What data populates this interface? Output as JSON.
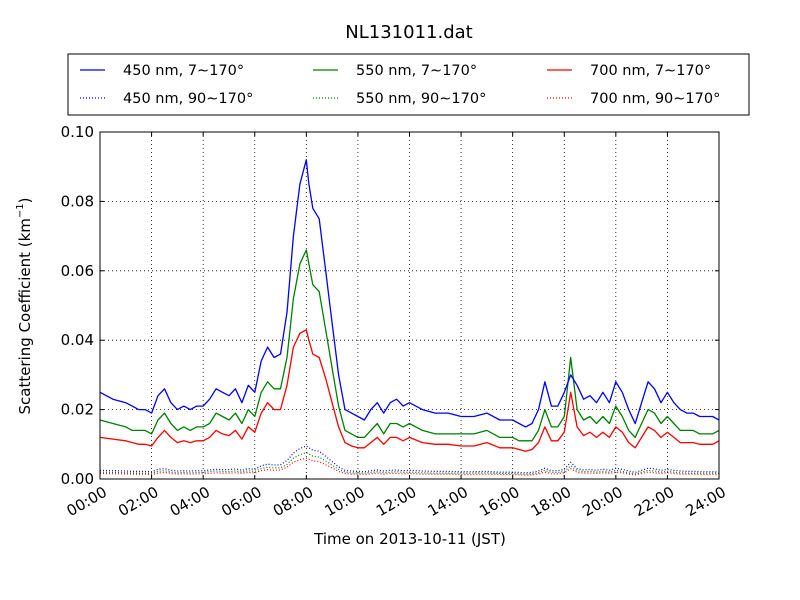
{
  "chart_data": {
    "type": "line",
    "title": "NL131011.dat",
    "xlabel": "Time on 2013-10-11 (JST)",
    "ylabel": "Scattering Coefficient (km",
    "ylabel_exponent": "−1",
    "ylabel_close": ")",
    "x_unit": "hours",
    "xlim": [
      0,
      24
    ],
    "ylim": [
      0,
      0.1
    ],
    "grid": true,
    "legend_position": "top, above plot",
    "x_ticks": [
      {
        "value": 0,
        "label": "00:00"
      },
      {
        "value": 2,
        "label": "02:00"
      },
      {
        "value": 4,
        "label": "04:00"
      },
      {
        "value": 6,
        "label": "06:00"
      },
      {
        "value": 8,
        "label": "08:00"
      },
      {
        "value": 10,
        "label": "10:00"
      },
      {
        "value": 12,
        "label": "12:00"
      },
      {
        "value": 14,
        "label": "14:00"
      },
      {
        "value": 16,
        "label": "16:00"
      },
      {
        "value": 18,
        "label": "18:00"
      },
      {
        "value": 20,
        "label": "20:00"
      },
      {
        "value": 22,
        "label": "22:00"
      },
      {
        "value": 24,
        "label": "24:00"
      }
    ],
    "y_ticks": [
      {
        "value": 0,
        "label": "0.00"
      },
      {
        "value": 0.02,
        "label": "0.02"
      },
      {
        "value": 0.04,
        "label": "0.04"
      },
      {
        "value": 0.06,
        "label": "0.06"
      },
      {
        "value": 0.08,
        "label": "0.08"
      },
      {
        "value": 0.1,
        "label": "0.10"
      }
    ],
    "x": [
      0,
      0.5,
      1,
      1.25,
      1.5,
      1.75,
      2,
      2.25,
      2.5,
      2.75,
      3,
      3.25,
      3.5,
      3.75,
      4,
      4.25,
      4.5,
      4.75,
      5,
      5.25,
      5.5,
      5.75,
      6,
      6.25,
      6.5,
      6.75,
      7,
      7.25,
      7.5,
      7.75,
      8,
      8.1,
      8.25,
      8.5,
      8.75,
      9,
      9.25,
      9.5,
      9.75,
      10,
      10.25,
      10.5,
      10.75,
      11,
      11.25,
      11.5,
      11.75,
      12,
      12.5,
      13,
      13.5,
      14,
      14.5,
      15,
      15.5,
      16,
      16.25,
      16.5,
      16.75,
      17,
      17.25,
      17.5,
      17.75,
      18,
      18.25,
      18.5,
      18.75,
      19,
      19.25,
      19.5,
      19.75,
      20,
      20.25,
      20.5,
      20.75,
      21,
      21.25,
      21.5,
      21.75,
      22,
      22.25,
      22.5,
      22.75,
      23,
      23.25,
      23.5,
      23.75,
      24
    ],
    "series": [
      {
        "name": "450 nm, 7∼170°",
        "color": "#0000ff",
        "style": "solid",
        "values": [
          0.025,
          0.023,
          0.022,
          0.021,
          0.02,
          0.02,
          0.019,
          0.024,
          0.026,
          0.022,
          0.02,
          0.021,
          0.02,
          0.021,
          0.021,
          0.023,
          0.026,
          0.025,
          0.024,
          0.026,
          0.022,
          0.027,
          0.025,
          0.034,
          0.038,
          0.035,
          0.036,
          0.048,
          0.07,
          0.085,
          0.092,
          0.085,
          0.078,
          0.075,
          0.06,
          0.045,
          0.03,
          0.02,
          0.019,
          0.018,
          0.017,
          0.02,
          0.022,
          0.019,
          0.022,
          0.023,
          0.021,
          0.022,
          0.02,
          0.019,
          0.019,
          0.018,
          0.018,
          0.019,
          0.017,
          0.017,
          0.016,
          0.015,
          0.016,
          0.02,
          0.028,
          0.021,
          0.021,
          0.025,
          0.03,
          0.027,
          0.023,
          0.024,
          0.022,
          0.025,
          0.022,
          0.028,
          0.025,
          0.02,
          0.016,
          0.022,
          0.028,
          0.026,
          0.022,
          0.025,
          0.022,
          0.02,
          0.019,
          0.019,
          0.018,
          0.018,
          0.018,
          0.017
        ]
      },
      {
        "name": "450 nm, 90∼170°",
        "color": "#0000ff",
        "style": "dotted",
        "values": [
          0.0025,
          0.0024,
          0.0023,
          0.0022,
          0.0022,
          0.0022,
          0.0021,
          0.0028,
          0.003,
          0.0025,
          0.0023,
          0.0024,
          0.0023,
          0.0024,
          0.0024,
          0.0026,
          0.0028,
          0.0027,
          0.0027,
          0.0029,
          0.0025,
          0.003,
          0.0028,
          0.0038,
          0.0043,
          0.004,
          0.0041,
          0.0053,
          0.0075,
          0.0088,
          0.0095,
          0.009,
          0.0083,
          0.008,
          0.0065,
          0.005,
          0.0035,
          0.0025,
          0.0023,
          0.0022,
          0.0021,
          0.0024,
          0.0026,
          0.0023,
          0.0025,
          0.0026,
          0.0024,
          0.0025,
          0.0023,
          0.0022,
          0.0022,
          0.0021,
          0.0021,
          0.0022,
          0.002,
          0.002,
          0.0019,
          0.0018,
          0.0019,
          0.0023,
          0.0031,
          0.0024,
          0.0024,
          0.0028,
          0.0048,
          0.003,
          0.0026,
          0.0027,
          0.0025,
          0.0028,
          0.0025,
          0.0031,
          0.0028,
          0.0023,
          0.0019,
          0.0025,
          0.0031,
          0.0029,
          0.0025,
          0.0028,
          0.0025,
          0.0023,
          0.0022,
          0.0022,
          0.0021,
          0.0021,
          0.0021,
          0.002
        ]
      },
      {
        "name": "550 nm, 7∼170°",
        "color": "#008000",
        "style": "solid",
        "values": [
          0.017,
          0.016,
          0.015,
          0.014,
          0.014,
          0.014,
          0.013,
          0.017,
          0.019,
          0.016,
          0.014,
          0.015,
          0.014,
          0.015,
          0.015,
          0.016,
          0.019,
          0.018,
          0.017,
          0.019,
          0.016,
          0.02,
          0.018,
          0.025,
          0.028,
          0.026,
          0.026,
          0.035,
          0.052,
          0.062,
          0.066,
          0.062,
          0.056,
          0.054,
          0.043,
          0.032,
          0.021,
          0.014,
          0.013,
          0.012,
          0.012,
          0.014,
          0.016,
          0.013,
          0.016,
          0.016,
          0.015,
          0.016,
          0.014,
          0.013,
          0.013,
          0.013,
          0.013,
          0.014,
          0.012,
          0.012,
          0.011,
          0.011,
          0.011,
          0.014,
          0.02,
          0.015,
          0.015,
          0.018,
          0.035,
          0.02,
          0.017,
          0.018,
          0.016,
          0.018,
          0.016,
          0.021,
          0.018,
          0.014,
          0.012,
          0.016,
          0.02,
          0.019,
          0.016,
          0.018,
          0.016,
          0.014,
          0.014,
          0.014,
          0.013,
          0.013,
          0.013,
          0.014
        ]
      },
      {
        "name": "550 nm, 90∼170°",
        "color": "#008000",
        "style": "dotted",
        "values": [
          0.002,
          0.0019,
          0.0018,
          0.0018,
          0.0017,
          0.0017,
          0.0017,
          0.0022,
          0.0024,
          0.002,
          0.0018,
          0.0019,
          0.0018,
          0.0019,
          0.0019,
          0.0021,
          0.0023,
          0.0022,
          0.0021,
          0.0023,
          0.002,
          0.0024,
          0.0022,
          0.003,
          0.0034,
          0.0032,
          0.0032,
          0.0042,
          0.006,
          0.007,
          0.0076,
          0.0072,
          0.0066,
          0.0063,
          0.0052,
          0.004,
          0.0028,
          0.002,
          0.0018,
          0.0017,
          0.0017,
          0.0019,
          0.0021,
          0.0018,
          0.002,
          0.0021,
          0.0019,
          0.002,
          0.0018,
          0.0017,
          0.0017,
          0.0017,
          0.0017,
          0.0018,
          0.0016,
          0.0016,
          0.0015,
          0.0014,
          0.0015,
          0.0018,
          0.0025,
          0.0019,
          0.0019,
          0.0022,
          0.0038,
          0.0024,
          0.0021,
          0.0022,
          0.002,
          0.0022,
          0.002,
          0.0025,
          0.0022,
          0.0018,
          0.0015,
          0.002,
          0.0025,
          0.0023,
          0.002,
          0.0022,
          0.002,
          0.0018,
          0.0017,
          0.0017,
          0.0017,
          0.0017,
          0.0017,
          0.0016
        ]
      },
      {
        "name": "700 nm, 7∼170°",
        "color": "#ff0000",
        "style": "solid",
        "values": [
          0.012,
          0.0115,
          0.011,
          0.0105,
          0.01,
          0.01,
          0.0095,
          0.012,
          0.014,
          0.012,
          0.0105,
          0.011,
          0.0105,
          0.011,
          0.011,
          0.012,
          0.014,
          0.013,
          0.0125,
          0.014,
          0.0115,
          0.015,
          0.0135,
          0.019,
          0.022,
          0.02,
          0.02,
          0.027,
          0.038,
          0.042,
          0.043,
          0.04,
          0.036,
          0.035,
          0.029,
          0.022,
          0.015,
          0.0105,
          0.0095,
          0.009,
          0.009,
          0.0105,
          0.012,
          0.01,
          0.012,
          0.012,
          0.011,
          0.012,
          0.0105,
          0.01,
          0.01,
          0.0095,
          0.0095,
          0.0105,
          0.009,
          0.009,
          0.0085,
          0.008,
          0.0085,
          0.0105,
          0.015,
          0.011,
          0.011,
          0.0135,
          0.025,
          0.015,
          0.0125,
          0.0135,
          0.012,
          0.0135,
          0.012,
          0.015,
          0.0135,
          0.0105,
          0.009,
          0.012,
          0.015,
          0.014,
          0.012,
          0.0135,
          0.012,
          0.0105,
          0.0105,
          0.0105,
          0.01,
          0.01,
          0.01,
          0.011
        ]
      },
      {
        "name": "700 nm, 90∼170°",
        "color": "#ff0000",
        "style": "dotted",
        "values": [
          0.0016,
          0.0015,
          0.0015,
          0.0014,
          0.0014,
          0.0014,
          0.0013,
          0.0017,
          0.0019,
          0.0016,
          0.0014,
          0.0015,
          0.0014,
          0.0015,
          0.0015,
          0.0016,
          0.0018,
          0.0017,
          0.0017,
          0.0018,
          0.0016,
          0.0019,
          0.0017,
          0.0024,
          0.0027,
          0.0025,
          0.0026,
          0.0034,
          0.0048,
          0.0056,
          0.006,
          0.0057,
          0.0052,
          0.005,
          0.0041,
          0.0032,
          0.0022,
          0.0016,
          0.0014,
          0.0014,
          0.0013,
          0.0015,
          0.0017,
          0.0014,
          0.0016,
          0.0016,
          0.0015,
          0.0016,
          0.0014,
          0.0014,
          0.0014,
          0.0013,
          0.0013,
          0.0014,
          0.0013,
          0.0013,
          0.0012,
          0.0011,
          0.0012,
          0.0014,
          0.002,
          0.0015,
          0.0015,
          0.0018,
          0.003,
          0.0019,
          0.0017,
          0.0017,
          0.0016,
          0.0018,
          0.0016,
          0.002,
          0.0018,
          0.0014,
          0.0012,
          0.0016,
          0.002,
          0.0018,
          0.0016,
          0.0018,
          0.0016,
          0.0014,
          0.0014,
          0.0014,
          0.0013,
          0.0013,
          0.0013,
          0.0013
        ]
      }
    ]
  }
}
